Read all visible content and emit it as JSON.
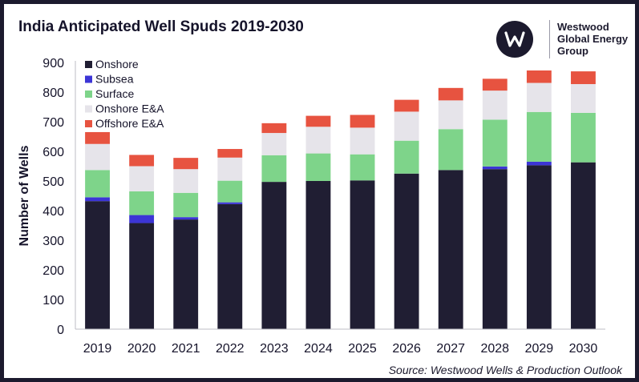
{
  "header": {
    "title": "India Anticipated Well Spuds 2019-2030"
  },
  "logo": {
    "line1": "Westwood",
    "line2": "Global Energy",
    "line3": "Group"
  },
  "footer": {
    "source": "Source: Westwood Wells & Production Outlook"
  },
  "chart_data": {
    "type": "bar",
    "stacked": true,
    "title": "India Anticipated Well Spuds 2019-2030",
    "xlabel": "",
    "ylabel": "Number of Wells",
    "ylim": [
      0,
      900
    ],
    "yticks": [
      0,
      100,
      200,
      300,
      400,
      500,
      600,
      700,
      800,
      900
    ],
    "categories": [
      "2019",
      "2020",
      "2021",
      "2022",
      "2023",
      "2024",
      "2025",
      "2026",
      "2027",
      "2028",
      "2029",
      "2030"
    ],
    "legend_position": "top-left",
    "series": [
      {
        "name": "Onshore",
        "color": "#201e33",
        "values": [
          432,
          358,
          370,
          422,
          497,
          500,
          502,
          525,
          537,
          540,
          553,
          563
        ]
      },
      {
        "name": "Subsea",
        "color": "#3c35d6",
        "values": [
          13,
          27,
          8,
          6,
          0,
          0,
          0,
          0,
          0,
          9,
          12,
          0
        ]
      },
      {
        "name": "Surface",
        "color": "#7ed48a",
        "values": [
          92,
          80,
          82,
          73,
          90,
          93,
          88,
          111,
          138,
          158,
          168,
          167
        ]
      },
      {
        "name": "Onshore E&A",
        "color": "#e6e4ea",
        "values": [
          88,
          85,
          80,
          78,
          75,
          90,
          90,
          98,
          97,
          98,
          98,
          97
        ]
      },
      {
        "name": "Offshore E&A",
        "color": "#e75340",
        "values": [
          40,
          38,
          38,
          29,
          33,
          37,
          43,
          40,
          42,
          40,
          42,
          43
        ]
      }
    ]
  }
}
